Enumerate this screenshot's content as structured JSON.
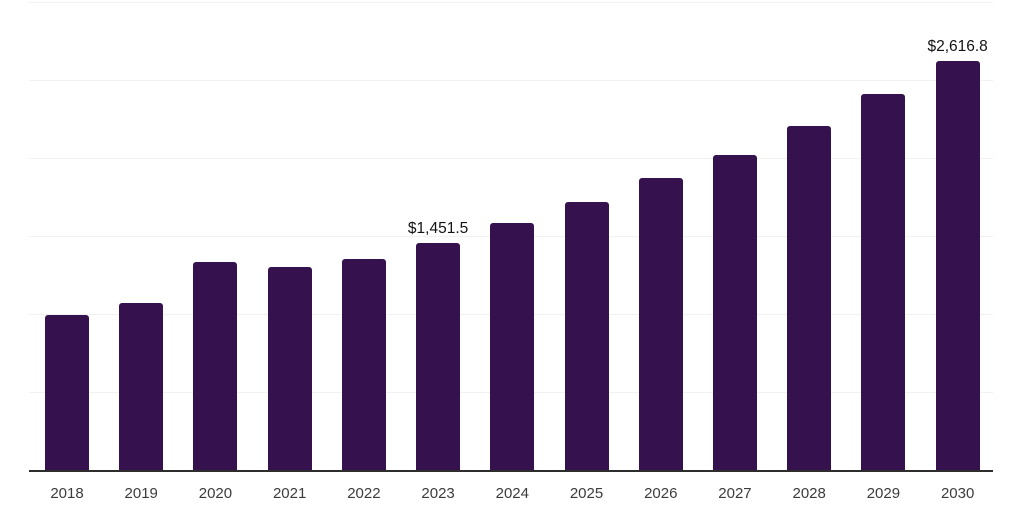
{
  "chart_data": {
    "type": "bar",
    "title": "",
    "xlabel": "",
    "ylabel": "",
    "categories": [
      "2018",
      "2019",
      "2020",
      "2021",
      "2022",
      "2023",
      "2024",
      "2025",
      "2026",
      "2027",
      "2028",
      "2029",
      "2030"
    ],
    "values": [
      990,
      1071,
      1333,
      1301,
      1352,
      1451.5,
      1580,
      1714,
      1870,
      2020,
      2205,
      2407,
      2616.8
    ],
    "data_labels": [
      "",
      "",
      "",
      "",
      "",
      "$1,451.5",
      "",
      "",
      "",
      "",
      "",
      "",
      "$2,616.8"
    ],
    "ylim": [
      0,
      3000
    ],
    "gridline_interval": 500,
    "grid": "horizontal, no y-axis tick labels",
    "legend": "none",
    "bar_color": "#35124d",
    "axis_line_color": "#2d2d2d",
    "gridline_color": "#f1f1f1",
    "x_label_color": "#3c3c3c",
    "data_label_color": "#131313"
  }
}
